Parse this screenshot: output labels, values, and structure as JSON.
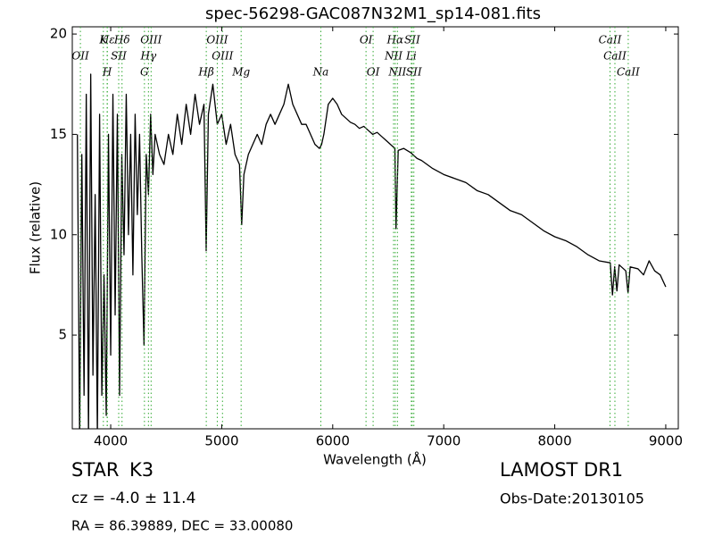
{
  "chart_data": {
    "type": "line",
    "title": "spec-56298-GAC087N32M1_sp14-081.fits",
    "xlabel": "Wavelength (Å)",
    "ylabel": "Flux (relative)",
    "color": "#000000",
    "line_color": "#33aa33",
    "xlim": [
      3654,
      9113
    ],
    "ylim": [
      0.33,
      20.36
    ],
    "xticks": [
      4000,
      5000,
      6000,
      7000,
      8000,
      9000
    ],
    "yticks": [
      5,
      10,
      15,
      20
    ],
    "x": [
      3700,
      3720,
      3740,
      3760,
      3780,
      3800,
      3820,
      3840,
      3860,
      3880,
      3900,
      3920,
      3940,
      3960,
      3980,
      4000,
      4020,
      4040,
      4060,
      4080,
      4100,
      4120,
      4140,
      4160,
      4180,
      4200,
      4220,
      4240,
      4260,
      4280,
      4300,
      4320,
      4340,
      4360,
      4380,
      4400,
      4440,
      4480,
      4520,
      4560,
      4600,
      4640,
      4680,
      4720,
      4760,
      4800,
      4840,
      4860,
      4880,
      4920,
      4960,
      5000,
      5040,
      5080,
      5120,
      5160,
      5180,
      5200,
      5240,
      5280,
      5320,
      5360,
      5400,
      5440,
      5480,
      5520,
      5560,
      5600,
      5640,
      5680,
      5720,
      5760,
      5800,
      5840,
      5880,
      5900,
      5920,
      5960,
      6000,
      6040,
      6080,
      6120,
      6160,
      6200,
      6240,
      6280,
      6320,
      6360,
      6400,
      6440,
      6480,
      6520,
      6560,
      6570,
      6590,
      6640,
      6700,
      6760,
      6800,
      6900,
      7000,
      7100,
      7200,
      7300,
      7400,
      7500,
      7600,
      7700,
      7800,
      7900,
      8000,
      8100,
      8200,
      8300,
      8400,
      8500,
      8520,
      8540,
      8560,
      8580,
      8640,
      8660,
      8680,
      8750,
      8800,
      8850,
      8900,
      8950,
      9000
    ],
    "values": [
      15,
      0,
      14,
      2,
      17,
      0,
      18,
      3,
      12,
      0,
      16,
      2,
      8,
      1,
      15,
      4,
      17,
      6,
      16,
      2,
      14,
      9,
      17,
      10,
      15,
      8,
      16,
      11,
      15,
      9,
      4.5,
      14,
      12,
      16,
      13,
      15,
      14,
      13.5,
      15,
      14,
      16,
      14.5,
      16.5,
      15,
      17,
      15.5,
      16.5,
      9.2,
      16,
      17.5,
      15.5,
      16,
      14.5,
      15.5,
      14,
      13.5,
      10.5,
      13,
      14,
      14.5,
      15,
      14.5,
      15.5,
      16,
      15.5,
      16,
      16.5,
      17.5,
      16.5,
      16,
      15.5,
      15.5,
      15,
      14.5,
      14.3,
      14.5,
      15,
      16.5,
      16.8,
      16.5,
      16,
      15.8,
      15.6,
      15.5,
      15.3,
      15.4,
      15.2,
      15,
      15.1,
      14.9,
      14.7,
      14.5,
      14.3,
      10.3,
      14.2,
      14.3,
      14.1,
      13.8,
      13.7,
      13.3,
      13,
      12.8,
      12.6,
      12.2,
      12,
      11.6,
      11.2,
      11,
      10.6,
      10.2,
      9.9,
      9.7,
      9.4,
      9,
      8.7,
      8.6,
      7,
      8.4,
      7.2,
      8.5,
      8.2,
      7.1,
      8.4,
      8.3,
      8,
      8.7,
      8.2,
      8,
      7.4
    ],
    "spectral_lines": [
      [
        {
          "label": "Hε",
          "wavelength": 3970
        },
        {
          "label": "K",
          "wavelength": 3934
        },
        {
          "label": "Hδ",
          "wavelength": 4102
        },
        {
          "label": "OIII",
          "wavelength": 4364
        },
        {
          "label": "OIII",
          "wavelength": 4960
        },
        {
          "label": "OI",
          "wavelength": 6300
        },
        {
          "label": "Hα",
          "wavelength": 6563
        },
        {
          "label": "SII",
          "wavelength": 6716
        },
        {
          "label": "CaII",
          "wavelength": 8498
        }
      ],
      [
        {
          "label": "OII",
          "wavelength": 3727
        },
        {
          "label": "SII",
          "wavelength": 4072
        },
        {
          "label": "Hγ",
          "wavelength": 4340
        },
        {
          "label": "OIII",
          "wavelength": 5007
        },
        {
          "label": "NII",
          "wavelength": 6548
        },
        {
          "label": "Li",
          "wavelength": 6708
        },
        {
          "label": "CaII",
          "wavelength": 8542
        }
      ],
      [
        {
          "label": "H",
          "wavelength": 3968
        },
        {
          "label": "G",
          "wavelength": 4304
        },
        {
          "label": "Hβ",
          "wavelength": 4861
        },
        {
          "label": "Mg",
          "wavelength": 5175
        },
        {
          "label": "Na",
          "wavelength": 5893
        },
        {
          "label": "OI",
          "wavelength": 6364
        },
        {
          "label": "NII",
          "wavelength": 6583
        },
        {
          "label": "SII",
          "wavelength": 6731
        },
        {
          "label": "CaII",
          "wavelength": 8662
        }
      ]
    ],
    "info": {
      "class": "STAR",
      "subclass": "K3",
      "cz": "cz = -4.0  ± 11.4",
      "survey": "LAMOST DR1",
      "obs_date": "Obs-Date:20130105",
      "coords": "RA = 86.39889, DEC = 33.00080"
    }
  }
}
